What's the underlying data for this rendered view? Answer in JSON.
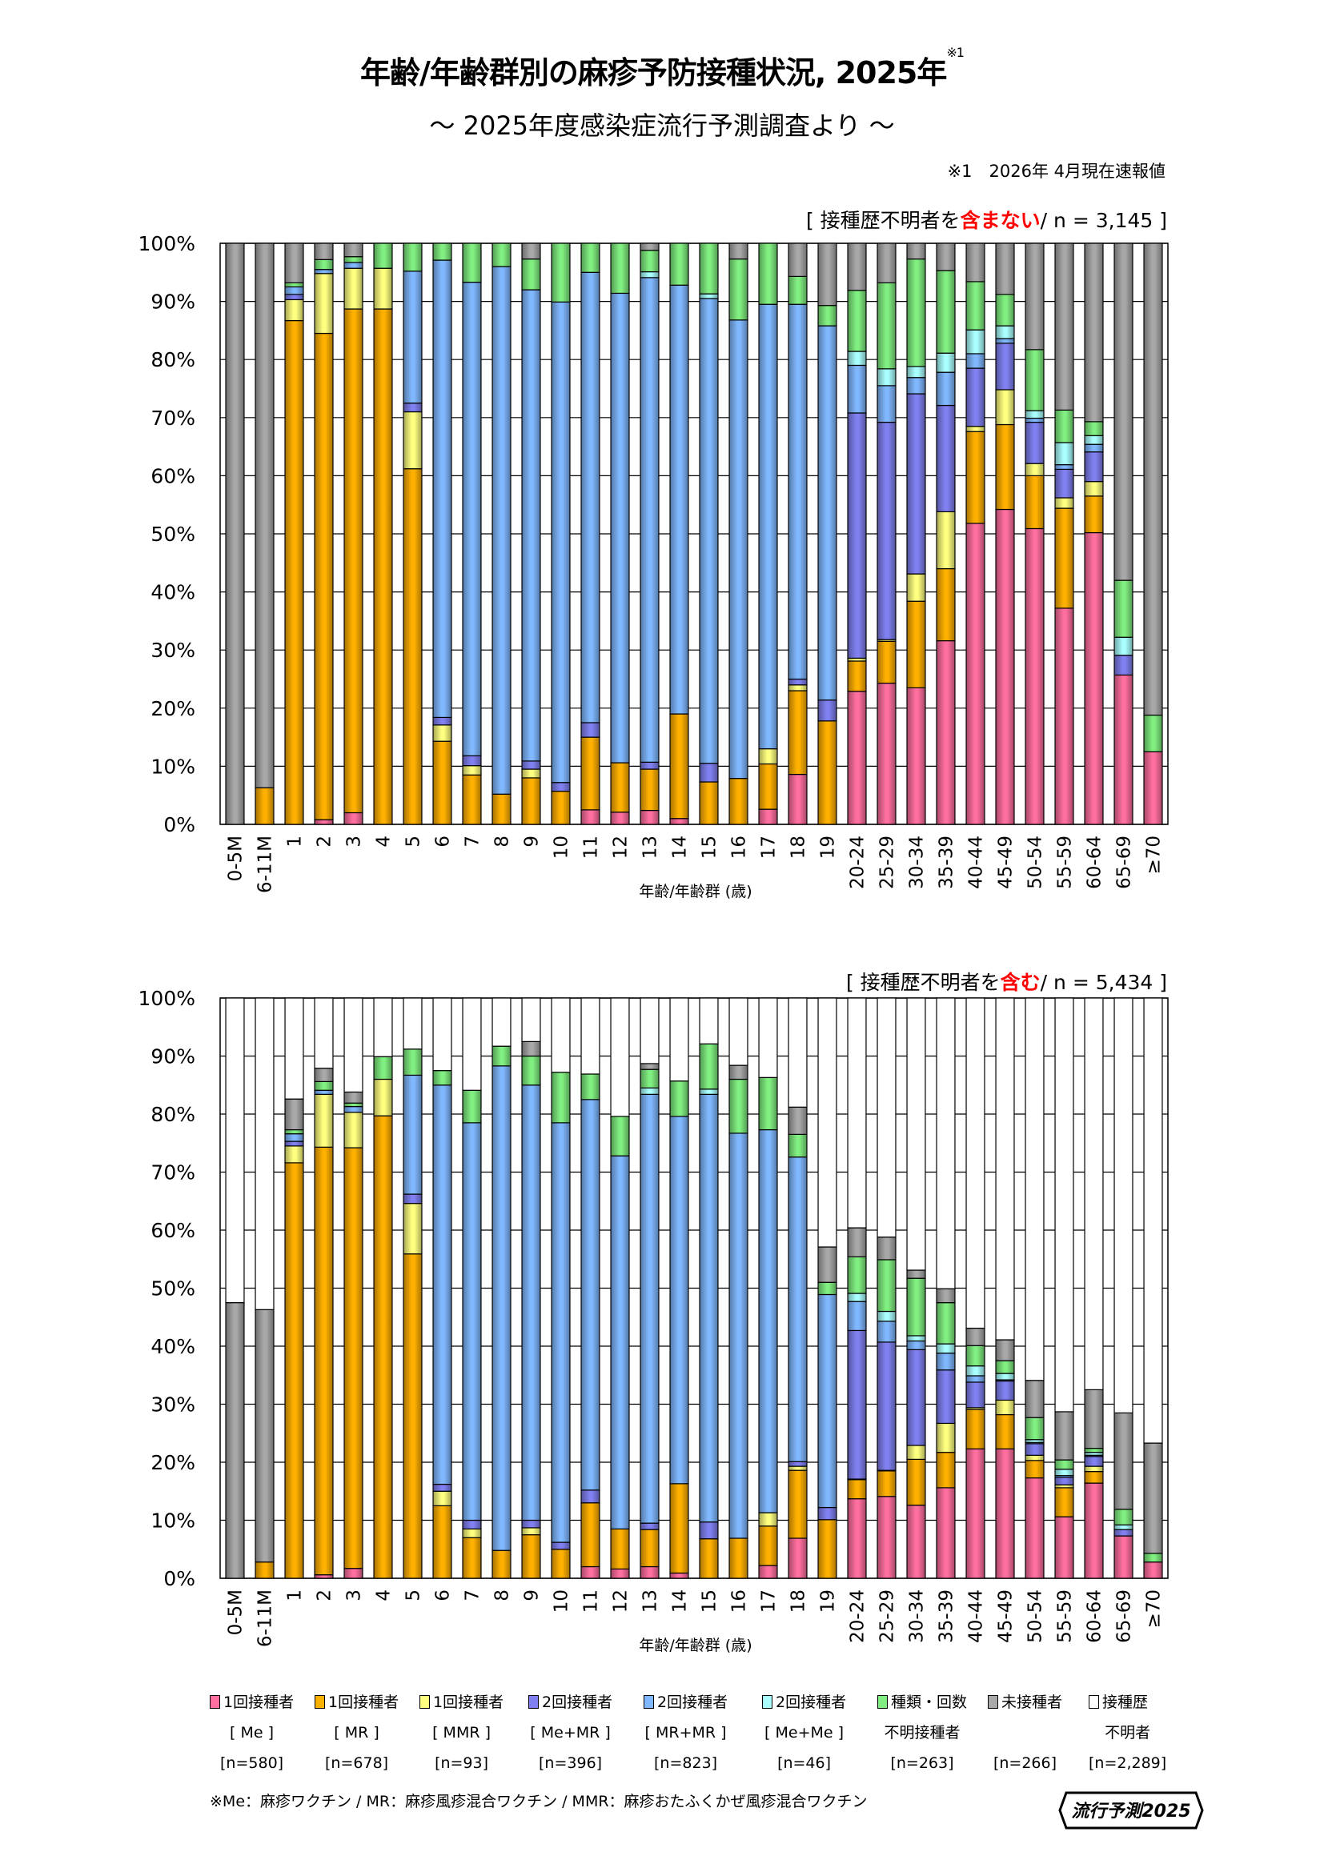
{
  "header": {
    "title": "年齢/年齢群別の麻疹予防接種状況, 2025年",
    "title_mark": "※1",
    "subtitle": "～ 2025年度感染症流行予測調査より ～",
    "note": "※1　2026年 4月現在速報値"
  },
  "legend": [
    {
      "line1": "1回接種者",
      "line2": "[ Me ]",
      "n": "[n=580]",
      "color": "#ff6f9f"
    },
    {
      "line1": "1回接種者",
      "line2": "[ MR ]",
      "n": "[n=678]",
      "color": "#ffb000"
    },
    {
      "line1": "1回接種者",
      "line2": "[ MMR ]",
      "n": "[n=93]",
      "color": "#ffff80"
    },
    {
      "line1": "2回接種者",
      "line2": "[ Me+MR ]",
      "n": "[n=396]",
      "color": "#8080f0"
    },
    {
      "line1": "2回接種者",
      "line2": "[ MR+MR ]",
      "n": "[n=823]",
      "color": "#80b8ff"
    },
    {
      "line1": "2回接種者",
      "line2": "[ Me+Me ]",
      "n": "[n=46]",
      "color": "#aaffff"
    },
    {
      "line1": "種類・回数",
      "line2": "不明接種者",
      "n": "[n=263]",
      "color": "#80ee80"
    },
    {
      "line1": "未接種者",
      "line2": "",
      "n": "[n=266]",
      "color": "#a8a8a8"
    },
    {
      "line1": "接種歴",
      "line2": "不明者",
      "n": "[n=2,289]",
      "color": "#ffffff"
    }
  ],
  "footnote": "※Me：麻疹ワクチン / MR：麻疹風疹混合ワクチン / MMR：麻疹おたふくかぜ風疹混合ワクチン",
  "logo_text": "流行予測2025",
  "chart_data": [
    {
      "type": "bar",
      "stacked": true,
      "label_prefix": "[ 接種歴不明者を",
      "label_highlight": "含まない",
      "label_suffix": "/ n = 3,145 ]",
      "xlabel": "年齢/年齢群 (歳)",
      "ylabel": "",
      "ylim": [
        0,
        100
      ],
      "yticks": [
        "0%",
        "10%",
        "20%",
        "30%",
        "40%",
        "50%",
        "60%",
        "70%",
        "80%",
        "90%",
        "100%"
      ],
      "grid": true,
      "categories": [
        "0-5M",
        "6-11M",
        "1",
        "2",
        "3",
        "4",
        "5",
        "6",
        "7",
        "8",
        "9",
        "10",
        "11",
        "12",
        "13",
        "14",
        "15",
        "16",
        "17",
        "18",
        "19",
        "20-24",
        "25-29",
        "30-34",
        "35-39",
        "40-44",
        "45-49",
        "50-54",
        "55-59",
        "60-64",
        "65-69",
        "≥70"
      ],
      "series": [
        "1回接種者 [Me]",
        "1回接種者 [MR]",
        "1回接種者 [MMR]",
        "2回接種者 [Me+MR]",
        "2回接種者 [MR+MR]",
        "2回接種者 [Me+Me]",
        "種類・回数不明接種者",
        "未接種者"
      ],
      "values_by_category": [
        [
          0,
          0,
          0,
          0,
          0,
          0,
          0,
          100
        ],
        [
          0,
          6.3,
          0,
          0,
          0,
          0,
          0,
          93.7
        ],
        [
          0,
          86.7,
          3.6,
          0.9,
          1.3,
          0,
          0.7,
          6.8
        ],
        [
          0.8,
          83.7,
          10.3,
          0,
          0.7,
          0,
          1.7,
          2.8
        ],
        [
          2,
          86.7,
          7,
          0,
          1,
          0,
          1,
          2.3
        ],
        [
          0,
          88.7,
          7,
          0,
          0,
          0,
          4.3,
          0
        ],
        [
          0,
          61.2,
          9.8,
          1.5,
          22.7,
          0,
          4.8,
          0
        ],
        [
          0,
          14.3,
          2.8,
          1.3,
          78.7,
          0,
          2.9,
          0
        ],
        [
          0,
          8.5,
          1.6,
          1.7,
          81.5,
          0,
          6.7,
          0
        ],
        [
          0,
          5.2,
          0,
          0,
          90.8,
          0,
          4,
          0
        ],
        [
          0,
          8,
          1.5,
          1.4,
          81.1,
          0,
          5.3,
          2.7
        ],
        [
          0,
          5.7,
          0,
          1.5,
          82.7,
          0,
          10.1,
          0
        ],
        [
          2.5,
          12.5,
          0,
          2.5,
          77.5,
          0,
          5,
          0
        ],
        [
          2.1,
          8.5,
          0,
          0,
          80.8,
          0,
          8.6,
          0
        ],
        [
          2.4,
          7.1,
          0,
          1.2,
          83.4,
          1,
          3.7,
          1.2
        ],
        [
          1,
          18,
          0,
          0,
          73.8,
          0,
          7.2,
          0
        ],
        [
          0,
          7.3,
          0,
          3.2,
          80,
          0.8,
          8.7,
          0
        ],
        [
          0,
          7.9,
          0,
          0,
          78.9,
          0,
          10.5,
          2.7
        ],
        [
          2.6,
          7.8,
          2.6,
          0,
          76.5,
          0,
          10.5,
          0
        ],
        [
          8.6,
          14.4,
          1,
          1,
          64.5,
          0,
          4.8,
          5.7
        ],
        [
          0,
          17.8,
          0,
          3.6,
          64.4,
          0,
          3.5,
          10.7
        ],
        [
          22.9,
          5.2,
          0.5,
          42.2,
          8.2,
          2.4,
          10.5,
          8.1
        ],
        [
          24.3,
          7.2,
          0.3,
          37.4,
          6.3,
          2.9,
          14.8,
          6.8
        ],
        [
          23.5,
          14.9,
          4.7,
          31,
          2.8,
          1.9,
          18.5,
          2.7
        ],
        [
          31.6,
          12.4,
          9.8,
          18.3,
          5.7,
          3.3,
          14.2,
          4.7
        ],
        [
          51.8,
          15.8,
          0.9,
          10,
          2.5,
          4.1,
          8.3,
          6.6
        ],
        [
          54.2,
          14.6,
          6,
          8,
          0.8,
          2.2,
          5.4,
          8.8
        ],
        [
          50.9,
          9.1,
          2.1,
          7.1,
          0.7,
          1.3,
          10.5,
          18.3
        ],
        [
          37.2,
          17.2,
          1.8,
          4.9,
          0.8,
          3.8,
          5.6,
          28.7
        ],
        [
          50.2,
          6.3,
          2.5,
          5.1,
          1.3,
          1.5,
          2.4,
          30.7
        ],
        [
          25.7,
          0,
          0,
          3.4,
          0,
          3.1,
          9.8,
          58
        ],
        [
          12.5,
          0,
          0,
          0,
          0,
          0,
          6.3,
          81.2
        ]
      ]
    },
    {
      "type": "bar",
      "stacked": true,
      "label_prefix": "[ 接種歴不明者を",
      "label_highlight": "含む",
      "label_suffix": "/ n = 5,434 ]",
      "xlabel": "年齢/年齢群 (歳)",
      "ylabel": "",
      "ylim": [
        0,
        100
      ],
      "yticks": [
        "0%",
        "10%",
        "20%",
        "30%",
        "40%",
        "50%",
        "60%",
        "70%",
        "80%",
        "90%",
        "100%"
      ],
      "grid": true,
      "categories": [
        "0-5M",
        "6-11M",
        "1",
        "2",
        "3",
        "4",
        "5",
        "6",
        "7",
        "8",
        "9",
        "10",
        "11",
        "12",
        "13",
        "14",
        "15",
        "16",
        "17",
        "18",
        "19",
        "20-24",
        "25-29",
        "30-34",
        "35-39",
        "40-44",
        "45-49",
        "50-54",
        "55-59",
        "60-64",
        "65-69",
        "≥70"
      ],
      "series": [
        "1回接種者 [Me]",
        "1回接種者 [MR]",
        "1回接種者 [MMR]",
        "2回接種者 [Me+MR]",
        "2回接種者 [MR+MR]",
        "2回接種者 [Me+Me]",
        "種類・回数不明接種者",
        "未接種者",
        "接種歴不明者"
      ],
      "values_by_category": [
        [
          0,
          0,
          0,
          0,
          0,
          0,
          0,
          47.5,
          52.5
        ],
        [
          0,
          2.8,
          0,
          0,
          0,
          0,
          0,
          43.5,
          53.7
        ],
        [
          0,
          71.6,
          2.9,
          0.8,
          1.3,
          0,
          0.7,
          5.3,
          17.4
        ],
        [
          0.6,
          73.7,
          9.1,
          0,
          0.7,
          0,
          1.5,
          2.3,
          12.1
        ],
        [
          1.7,
          72.5,
          6.1,
          0,
          1,
          0,
          0.6,
          1.9,
          16.2
        ],
        [
          0,
          79.7,
          6.3,
          0,
          0,
          0,
          3.9,
          0,
          10.1
        ],
        [
          0,
          55.9,
          8.7,
          1.6,
          20.5,
          0,
          4.5,
          0,
          8.8
        ],
        [
          0,
          12.5,
          2.5,
          1.2,
          68.8,
          0,
          2.5,
          0,
          12.5
        ],
        [
          0,
          7,
          1.5,
          1.5,
          68.5,
          0,
          5.6,
          0,
          15.9
        ],
        [
          0,
          4.8,
          0,
          0,
          83.5,
          0,
          3.4,
          0,
          8.3
        ],
        [
          0,
          7.5,
          1.2,
          1.3,
          75,
          0,
          5,
          2.5,
          7.5
        ],
        [
          0,
          5,
          0,
          1.2,
          72.3,
          0,
          8.7,
          0,
          12.8
        ],
        [
          2,
          11,
          0,
          2.2,
          67.3,
          0,
          4.4,
          0,
          13.1
        ],
        [
          1.6,
          6.9,
          0,
          0,
          64.3,
          0,
          6.8,
          0,
          20.4
        ],
        [
          2,
          6.4,
          0,
          1.1,
          73.9,
          1.1,
          3.2,
          1,
          11.3
        ],
        [
          0.9,
          15.4,
          0,
          0,
          63.3,
          0,
          6.1,
          0,
          14.3
        ],
        [
          0,
          6.8,
          0,
          2.9,
          73.7,
          0.9,
          7.8,
          0,
          7.9
        ],
        [
          0,
          6.9,
          0,
          0,
          69.8,
          0,
          9.3,
          2.4,
          11.6
        ],
        [
          2.2,
          6.8,
          2.3,
          0,
          66,
          0,
          9,
          0,
          13.7
        ],
        [
          6.9,
          11.7,
          0.7,
          0.8,
          52.5,
          0,
          3.9,
          4.7,
          18.8
        ],
        [
          0,
          10.1,
          0,
          2.1,
          36.7,
          0,
          2.1,
          6.1,
          42.9
        ],
        [
          13.7,
          3.3,
          0.1,
          25.6,
          5,
          1.4,
          6.3,
          5,
          39.6
        ],
        [
          14.1,
          4.4,
          0.1,
          22.1,
          3.6,
          1.7,
          8.9,
          3.9,
          41.2
        ],
        [
          12.6,
          7.9,
          2.4,
          16.5,
          1.5,
          0.9,
          9.9,
          1.4,
          46.9
        ],
        [
          15.6,
          6.1,
          5,
          9.2,
          2.9,
          1.6,
          7.1,
          2.4,
          50.1
        ],
        [
          22.3,
          6.8,
          0.3,
          4.4,
          1.1,
          1.7,
          3.5,
          3,
          56.9
        ],
        [
          22.3,
          5.9,
          2.5,
          3.3,
          0.2,
          1.1,
          2.2,
          3.6,
          58.9
        ],
        [
          17.3,
          3,
          0.9,
          2,
          0.2,
          0.5,
          3.8,
          6.4,
          65.9
        ],
        [
          10.6,
          5,
          0.5,
          1.3,
          0.3,
          1.1,
          1.6,
          8.3,
          71.3
        ],
        [
          16.4,
          2,
          0.9,
          1.7,
          0.2,
          0.5,
          0.7,
          10.1,
          67.5
        ],
        [
          7.3,
          0,
          0,
          1.1,
          0,
          0.8,
          2.7,
          16.6,
          71.5
        ],
        [
          2.8,
          0,
          0,
          0,
          0,
          0,
          1.5,
          19,
          76.7
        ]
      ]
    }
  ]
}
